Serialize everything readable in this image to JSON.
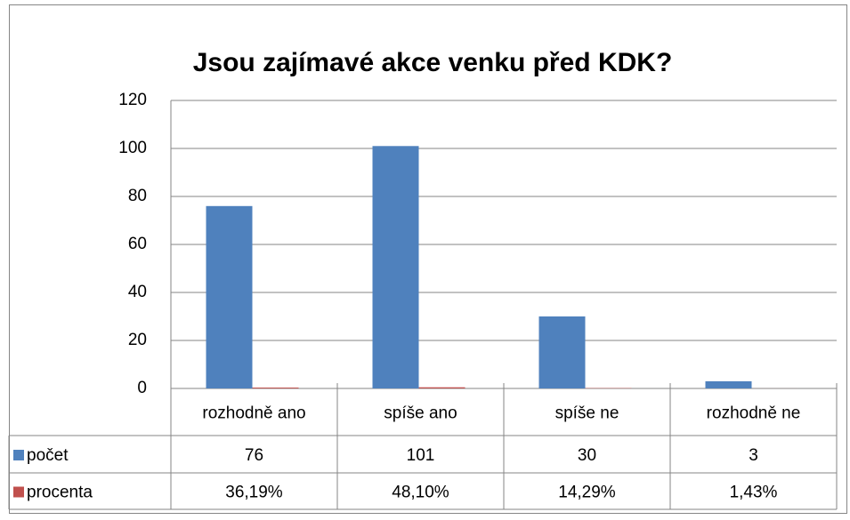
{
  "chart_data": {
    "type": "bar",
    "title": "Jsou zajímavé akce venku před KDK?",
    "categories": [
      "rozhodně ano",
      "spíše ano",
      "spíše ne",
      "rozhodně ne"
    ],
    "series": [
      {
        "name": "počet",
        "color": "#4f81bd",
        "values": [
          76,
          101,
          30,
          3
        ]
      },
      {
        "name": "procenta",
        "color": "#c0504d",
        "values": [
          0.3619,
          0.481,
          0.1429,
          0.0143
        ],
        "value_labels": [
          "36,19%",
          "48,10%",
          "14,29%",
          "1,43%"
        ]
      }
    ],
    "ylim": [
      0,
      120
    ],
    "yticks": [
      0,
      20,
      40,
      60,
      80,
      100,
      120
    ],
    "grid": true
  }
}
